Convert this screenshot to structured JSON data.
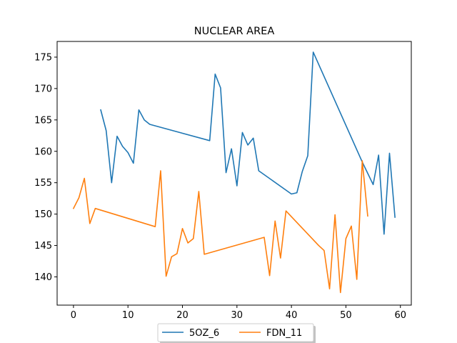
{
  "chart_data": {
    "type": "line",
    "title": "NUCLEAR AREA",
    "xlabel": "",
    "ylabel": "",
    "xlim": [
      -3,
      62
    ],
    "ylim": [
      135.5,
      177.5
    ],
    "xticks": [
      0,
      10,
      20,
      30,
      40,
      50,
      60
    ],
    "yticks": [
      140,
      145,
      150,
      155,
      160,
      165,
      170,
      175
    ],
    "grid": false,
    "legend_position": "bottom-center",
    "series": [
      {
        "name": "5OZ_6",
        "color": "#1f77b4",
        "x": [
          5,
          6,
          7,
          8,
          9,
          10,
          11,
          12,
          13,
          14,
          25,
          26,
          27,
          28,
          29,
          30,
          31,
          32,
          33,
          34,
          40,
          41,
          42,
          43,
          44,
          53,
          55,
          56,
          57,
          58,
          59
        ],
        "y": [
          166.6,
          163.3,
          155.0,
          162.4,
          160.8,
          159.8,
          158.1,
          166.6,
          165.0,
          164.3,
          161.7,
          172.3,
          170.1,
          156.6,
          160.4,
          154.5,
          163.0,
          161.0,
          162.1,
          156.9,
          153.2,
          153.4,
          156.8,
          159.3,
          175.8,
          158.3,
          154.7,
          159.4,
          146.8,
          159.7,
          149.5
        ]
      },
      {
        "name": "FDN_11",
        "color": "#ff7f0e",
        "x": [
          0,
          1,
          2,
          3,
          4,
          15,
          16,
          17,
          18,
          19,
          20,
          21,
          22,
          23,
          24,
          35,
          36,
          37,
          38,
          39,
          45,
          46,
          47,
          48,
          49,
          50,
          51,
          52,
          53,
          54
        ],
        "y": [
          150.9,
          152.6,
          155.7,
          148.5,
          150.9,
          148.0,
          156.9,
          140.1,
          143.2,
          143.7,
          147.7,
          145.4,
          146.1,
          153.6,
          143.6,
          146.3,
          140.2,
          148.9,
          143.0,
          150.5,
          145.0,
          144.2,
          138.1,
          149.9,
          137.5,
          146.1,
          148.1,
          139.6,
          158.5,
          149.7
        ]
      }
    ]
  }
}
